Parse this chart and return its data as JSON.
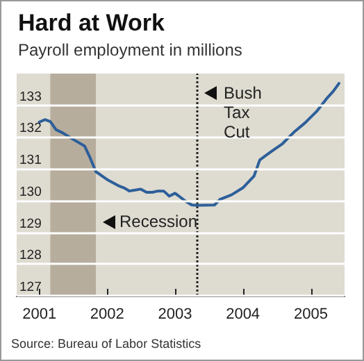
{
  "chart_data": {
    "type": "line",
    "title": "Hard at Work",
    "subtitle": "Payroll employment in millions",
    "annotations": [
      "Source: Bureau of Labor Statistics"
    ],
    "x": [
      "2001-01",
      "2001-02",
      "2001-03",
      "2001-04",
      "2001-05",
      "2001-07",
      "2001-09",
      "2001-10",
      "2001-11",
      "2002-01",
      "2002-03",
      "2002-04",
      "2002-05",
      "2002-06",
      "2002-07",
      "2002-08",
      "2002-09",
      "2002-10",
      "2002-11",
      "2002-12",
      "2003-01",
      "2003-03",
      "2003-04",
      "2003-05",
      "2003-08",
      "2003-09",
      "2003-11",
      "2004-01",
      "2004-03",
      "2004-04",
      "2004-06",
      "2004-08",
      "2004-10",
      "2004-12",
      "2005-02",
      "2005-04",
      "2005-05",
      "2005-06"
    ],
    "series": [
      {
        "color": "#2d5f99",
        "values": [
          132.47,
          132.55,
          132.49,
          132.23,
          132.15,
          131.93,
          131.72,
          131.35,
          130.91,
          130.66,
          130.47,
          130.4,
          130.3,
          130.33,
          130.36,
          130.26,
          130.26,
          130.3,
          130.3,
          130.14,
          130.23,
          129.97,
          129.86,
          129.85,
          129.86,
          130.04,
          130.18,
          130.4,
          130.77,
          131.28,
          131.54,
          131.79,
          132.15,
          132.45,
          132.81,
          133.25,
          133.44,
          133.69
        ]
      }
    ],
    "xlim": [
      "2000-09",
      "2005-07"
    ],
    "xticks": [
      {
        "value": "2001-01",
        "label": "2001"
      },
      {
        "value": "2002-01",
        "label": "2002"
      },
      {
        "value": "2003-01",
        "label": "2003"
      },
      {
        "value": "2004-01",
        "label": "2004"
      },
      {
        "value": "2005-01",
        "label": "2005"
      }
    ],
    "ylim": [
      127,
      134
    ],
    "yticks": [
      127,
      128,
      129,
      130,
      131,
      132,
      133
    ],
    "grid": "y",
    "marker": "none",
    "line_style": "solid",
    "ref_lines": [
      {
        "axis": "x",
        "value": "2003-05",
        "label": "Bush Tax Cut",
        "line_style": "dotted",
        "color": "#222222"
      }
    ],
    "bands": [
      {
        "axis": "x",
        "from": "2001-03",
        "to": "2001-11",
        "label": "Recession",
        "color": "#b7ad9d"
      }
    ]
  }
}
